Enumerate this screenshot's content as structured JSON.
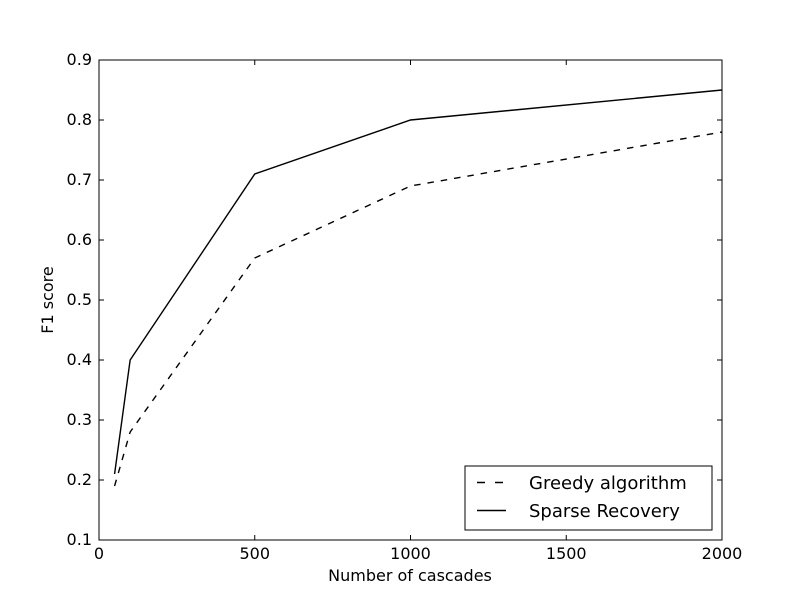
{
  "figure": {
    "background_color": "#ffffff",
    "line_color": "#000000",
    "text_color": "#000000"
  },
  "chart_data": {
    "type": "line",
    "title": "",
    "xlabel": "Number of cascades",
    "ylabel": "F1 score",
    "xlim": [
      0,
      2000
    ],
    "ylim": [
      0.1,
      0.9
    ],
    "xticks": [
      0,
      500,
      1000,
      1500,
      2000
    ],
    "yticks": [
      0.1,
      0.2,
      0.3,
      0.4,
      0.5,
      0.6,
      0.7,
      0.8,
      0.9
    ],
    "grid": false,
    "tick_direction": "in",
    "legend": {
      "position": "lower right",
      "entries": [
        "Greedy algorithm",
        "Sparse Recovery"
      ]
    },
    "series": [
      {
        "name": "Greedy algorithm",
        "line_style": "dashed",
        "color": "#000000",
        "x": [
          50,
          100,
          500,
          1000,
          2000
        ],
        "y": [
          0.19,
          0.28,
          0.57,
          0.69,
          0.78
        ]
      },
      {
        "name": "Sparse Recovery",
        "line_style": "solid",
        "color": "#000000",
        "x": [
          50,
          100,
          500,
          1000,
          2000
        ],
        "y": [
          0.21,
          0.4,
          0.71,
          0.8,
          0.85
        ]
      }
    ]
  }
}
